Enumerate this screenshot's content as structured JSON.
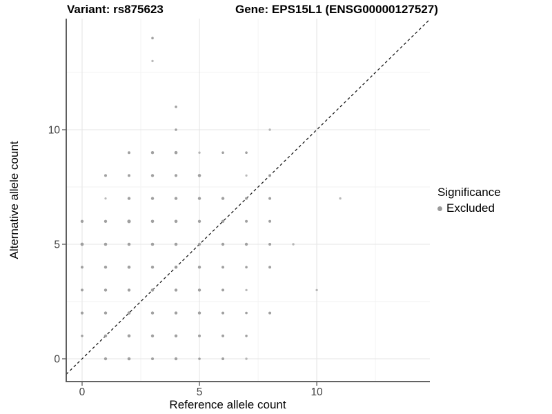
{
  "header": {
    "title_left": "Variant: rs875623",
    "title_right": "Gene: EPS15L1 (ENSG00000127527)"
  },
  "legend": {
    "title": "Significance",
    "items": [
      {
        "label": "Excluded",
        "color": "#9b9b9b"
      }
    ]
  },
  "chart_data": {
    "type": "scatter",
    "xlabel": "Reference allele count",
    "ylabel": "Alternative allele count",
    "xlim": [
      -0.676,
      14.82
    ],
    "ylim": [
      -0.964,
      14.85
    ],
    "x_ticks": [
      0,
      5,
      10
    ],
    "y_ticks": [
      0,
      5,
      10
    ],
    "x_minor": [
      2.5,
      7.5,
      12.5
    ],
    "y_minor": [
      2.5,
      7.5,
      12.5
    ],
    "grid": true,
    "legend_position": "right",
    "identity_line": {
      "show": true,
      "style": "dashed",
      "color": "#1a1a1a"
    },
    "point_color": "#9b9b9b",
    "major_grid_color": "#e5e5e5",
    "minor_grid_color": "#f2f2f2",
    "axis_color": "#4d4d4d",
    "tick_label_color": "#404040",
    "series": [
      {
        "name": "Excluded",
        "points": [
          [
            1,
            0,
            2.2
          ],
          [
            2,
            0,
            2.3
          ],
          [
            3,
            0,
            2.0
          ],
          [
            4,
            0,
            2.2
          ],
          [
            5,
            0,
            1.8
          ],
          [
            6,
            0,
            2.0
          ],
          [
            7,
            0,
            1.7
          ],
          [
            0,
            1,
            1.8
          ],
          [
            1,
            1,
            2.2
          ],
          [
            2,
            1,
            2.3
          ],
          [
            3,
            1,
            2.2
          ],
          [
            4,
            1,
            2.2
          ],
          [
            5,
            1,
            2.0
          ],
          [
            6,
            1,
            2.0
          ],
          [
            7,
            1,
            1.8
          ],
          [
            0,
            2,
            2.1
          ],
          [
            1,
            2,
            2.2
          ],
          [
            2,
            2,
            2.3
          ],
          [
            3,
            2,
            2.2
          ],
          [
            4,
            2,
            2.2
          ],
          [
            5,
            2,
            2.2
          ],
          [
            6,
            2,
            2.0
          ],
          [
            7,
            2,
            1.8
          ],
          [
            8,
            2,
            2.0
          ],
          [
            0,
            3,
            2.0
          ],
          [
            1,
            3,
            2.2
          ],
          [
            2,
            3,
            2.2
          ],
          [
            3,
            3,
            2.3
          ],
          [
            4,
            3,
            2.2
          ],
          [
            5,
            3,
            2.2
          ],
          [
            6,
            3,
            2.0
          ],
          [
            7,
            3,
            1.7
          ],
          [
            10,
            3,
            1.7
          ],
          [
            0,
            4,
            2.0
          ],
          [
            1,
            4,
            2.2
          ],
          [
            2,
            4,
            2.3
          ],
          [
            3,
            4,
            2.2
          ],
          [
            4,
            4,
            2.3
          ],
          [
            5,
            4,
            2.2
          ],
          [
            6,
            4,
            2.0
          ],
          [
            7,
            4,
            1.8
          ],
          [
            8,
            4,
            2.0
          ],
          [
            0,
            5,
            2.4
          ],
          [
            1,
            5,
            2.3
          ],
          [
            2,
            5,
            2.3
          ],
          [
            3,
            5,
            2.3
          ],
          [
            4,
            5,
            2.3
          ],
          [
            5,
            5,
            2.2
          ],
          [
            6,
            5,
            2.2
          ],
          [
            7,
            5,
            2.2
          ],
          [
            8,
            5,
            2.0
          ],
          [
            9,
            5,
            1.7
          ],
          [
            0,
            6,
            2.2
          ],
          [
            1,
            6,
            2.2
          ],
          [
            2,
            6,
            2.6
          ],
          [
            3,
            6,
            2.3
          ],
          [
            4,
            6,
            2.3
          ],
          [
            5,
            6,
            2.2
          ],
          [
            6,
            6,
            2.2
          ],
          [
            7,
            6,
            2.0
          ],
          [
            8,
            6,
            2.0
          ],
          [
            1,
            7,
            1.6
          ],
          [
            2,
            7,
            2.2
          ],
          [
            3,
            7,
            2.2
          ],
          [
            4,
            7,
            2.2
          ],
          [
            5,
            7,
            2.2
          ],
          [
            6,
            7,
            2.2
          ],
          [
            7,
            7,
            2.0
          ],
          [
            8,
            7,
            2.0
          ],
          [
            11,
            7,
            1.7
          ],
          [
            1,
            8,
            2.0
          ],
          [
            2,
            8,
            2.0
          ],
          [
            3,
            8,
            2.2
          ],
          [
            4,
            8,
            2.1
          ],
          [
            5,
            8,
            2.3
          ],
          [
            7,
            8,
            1.6
          ],
          [
            8,
            8,
            2.0
          ],
          [
            2,
            9,
            2.0
          ],
          [
            3,
            9,
            2.2
          ],
          [
            4,
            9,
            2.3
          ],
          [
            5,
            9,
            1.7
          ],
          [
            6,
            9,
            1.8
          ],
          [
            7,
            9,
            1.8
          ],
          [
            4,
            10,
            1.8
          ],
          [
            8,
            10,
            1.7
          ],
          [
            4,
            11,
            1.8
          ],
          [
            3,
            13,
            1.7
          ],
          [
            3,
            14,
            1.8
          ]
        ]
      }
    ]
  }
}
